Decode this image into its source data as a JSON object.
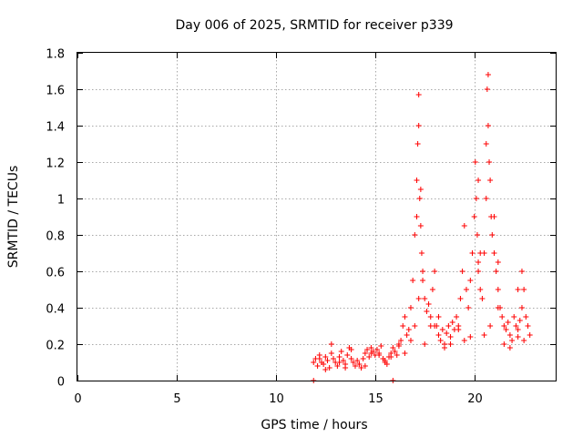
{
  "chart_data": {
    "type": "scatter",
    "title": "Day 006 of 2025, SRMTID for receiver p339",
    "xlabel": "GPS time / hours",
    "ylabel": "SRMTID / TECUs",
    "xlim": [
      0,
      24.1
    ],
    "ylim": [
      0,
      1.8
    ],
    "xticks": [
      0,
      5,
      10,
      15,
      20
    ],
    "xtick_labels": [
      "0",
      "5",
      "10",
      "15",
      "20"
    ],
    "yticks": [
      0,
      0.2,
      0.4,
      0.6,
      0.8,
      1.0,
      1.2,
      1.4,
      1.6,
      1.8
    ],
    "ytick_labels": [
      "0",
      "0.2",
      "0.4",
      "0.6",
      "0.8",
      "1",
      "1.2",
      "1.4",
      "1.6",
      "1.8"
    ],
    "grid": true,
    "marker": "+",
    "color": "#ff0000",
    "series": [
      {
        "name": "SRMTID",
        "x": [
          11.9,
          12.0,
          12.1,
          12.2,
          12.3,
          12.4,
          12.5,
          12.6,
          12.7,
          12.8,
          12.9,
          13.0,
          13.1,
          13.2,
          13.3,
          13.4,
          13.5,
          13.6,
          13.7,
          13.8,
          13.9,
          14.0,
          14.1,
          14.2,
          14.3,
          14.4,
          14.5,
          14.6,
          14.7,
          14.8,
          14.9,
          15.0,
          15.1,
          15.2,
          15.3,
          15.4,
          15.5,
          15.6,
          15.7,
          15.8,
          15.9,
          16.0,
          16.1,
          16.2,
          16.3,
          16.4,
          16.5,
          16.6,
          16.7,
          16.8,
          16.9,
          17.0,
          17.1,
          17.1,
          17.15,
          17.2,
          17.2,
          17.25,
          17.3,
          17.35,
          17.4,
          17.5,
          17.6,
          17.7,
          17.8,
          17.9,
          18.0,
          18.1,
          18.2,
          18.3,
          18.4,
          18.5,
          18.6,
          18.7,
          18.8,
          18.9,
          19.0,
          19.1,
          19.2,
          19.3,
          19.4,
          19.5,
          19.6,
          19.7,
          19.8,
          19.9,
          20.0,
          20.05,
          20.1,
          20.15,
          20.2,
          20.3,
          20.4,
          20.5,
          20.6,
          20.6,
          20.65,
          20.7,
          20.7,
          20.75,
          20.8,
          20.85,
          20.9,
          21.0,
          21.1,
          21.2,
          21.3,
          21.4,
          21.5,
          21.6,
          21.7,
          21.8,
          21.9,
          22.0,
          22.1,
          22.2,
          22.3,
          22.4,
          22.5,
          22.6,
          22.7,
          11.9,
          15.9,
          12.5,
          13.5,
          14.5,
          15.5,
          16.5,
          17.5,
          18.5,
          19.5,
          20.5,
          21.5,
          22.5,
          12.8,
          13.8,
          14.8,
          15.8,
          16.8,
          17.8,
          18.8,
          19.8,
          20.8,
          21.8,
          22.8,
          17.0,
          17.3,
          17.4,
          18.0,
          20.2,
          20.3,
          21.0,
          21.2,
          22.2,
          22.4,
          12.2,
          13.2,
          14.2,
          15.2,
          16.2,
          17.2,
          18.2,
          19.2,
          20.2,
          21.2,
          22.2
        ],
        "y": [
          0.1,
          0.12,
          0.08,
          0.14,
          0.1,
          0.09,
          0.13,
          0.11,
          0.07,
          0.15,
          0.12,
          0.1,
          0.08,
          0.13,
          0.16,
          0.11,
          0.09,
          0.14,
          0.18,
          0.12,
          0.1,
          0.08,
          0.11,
          0.09,
          0.07,
          0.12,
          0.15,
          0.17,
          0.13,
          0.18,
          0.16,
          0.14,
          0.17,
          0.15,
          0.19,
          0.12,
          0.11,
          0.09,
          0.13,
          0.15,
          0.18,
          0.16,
          0.14,
          0.19,
          0.22,
          0.3,
          0.35,
          0.25,
          0.28,
          0.4,
          0.55,
          0.8,
          0.9,
          1.1,
          1.3,
          1.57,
          1.4,
          1.0,
          0.85,
          0.7,
          0.55,
          0.45,
          0.38,
          0.42,
          0.35,
          0.5,
          0.6,
          0.3,
          0.25,
          0.22,
          0.28,
          0.2,
          0.26,
          0.3,
          0.24,
          0.32,
          0.28,
          0.35,
          0.3,
          0.45,
          0.6,
          0.85,
          0.5,
          0.4,
          0.55,
          0.7,
          0.9,
          1.2,
          1.0,
          0.8,
          0.65,
          0.5,
          0.45,
          0.7,
          1.0,
          1.3,
          1.6,
          1.68,
          1.4,
          1.2,
          1.1,
          0.9,
          0.8,
          0.7,
          0.6,
          0.5,
          0.4,
          0.35,
          0.3,
          0.28,
          0.32,
          0.25,
          0.22,
          0.35,
          0.3,
          0.28,
          0.33,
          0.4,
          0.5,
          0.35,
          0.3,
          0.0,
          0.0,
          0.06,
          0.07,
          0.08,
          0.1,
          0.15,
          0.2,
          0.18,
          0.22,
          0.25,
          0.2,
          0.22,
          0.2,
          0.17,
          0.15,
          0.13,
          0.22,
          0.3,
          0.2,
          0.24,
          0.3,
          0.18,
          0.25,
          0.3,
          1.05,
          0.6,
          0.3,
          1.1,
          0.7,
          0.9,
          0.65,
          0.5,
          0.6,
          0.12,
          0.1,
          0.09,
          0.14,
          0.2,
          0.45,
          0.35,
          0.28,
          0.6,
          0.4,
          0.24
        ]
      }
    ]
  }
}
